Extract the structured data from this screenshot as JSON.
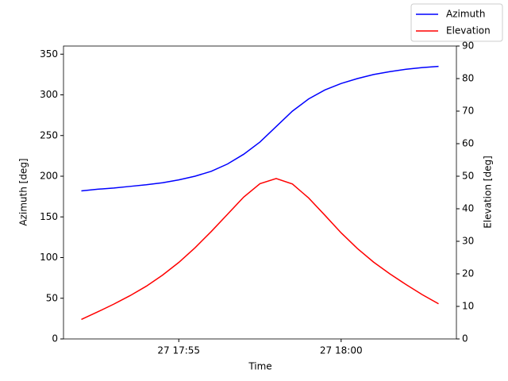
{
  "chart_data": {
    "type": "line",
    "xlabel": "Time",
    "ylabel": "Azimuth [deg]",
    "y2label": "Elevation [deg]",
    "x": [
      "27 17:52:00",
      "27 17:52:30",
      "27 17:53:00",
      "27 17:53:30",
      "27 17:54:00",
      "27 17:54:30",
      "27 17:55:00",
      "27 17:55:30",
      "27 17:56:00",
      "27 17:56:30",
      "27 17:57:00",
      "27 17:57:30",
      "27 17:58:00",
      "27 17:58:30",
      "27 17:59:00",
      "27 17:59:30",
      "27 18:00:00",
      "27 18:00:30",
      "27 18:01:00",
      "27 18:01:30",
      "27 18:02:00",
      "27 18:02:30",
      "27 18:03:00"
    ],
    "series": [
      {
        "name": "Azimuth",
        "color": "#0000ff",
        "axis": "y",
        "values": [
          182,
          184,
          185.5,
          187.5,
          189.5,
          192,
          195.5,
          200,
          206,
          215,
          227,
          242,
          261,
          280,
          295,
          306,
          314,
          320,
          325,
          328.5,
          331.5,
          333.5,
          335
        ]
      },
      {
        "name": "Elevation",
        "color": "#ff0000",
        "axis": "y2",
        "values": [
          6,
          8.3,
          10.7,
          13.3,
          16.2,
          19.6,
          23.5,
          28,
          33,
          38.3,
          43.6,
          47.7,
          49.3,
          47.6,
          43.3,
          38,
          32.6,
          27.8,
          23.6,
          20,
          16.7,
          13.6,
          10.8
        ]
      }
    ],
    "xlim": [
      "27 17:51:27",
      "27 18:03:33"
    ],
    "xticks": [
      {
        "value": "27 17:55:00",
        "label": "27 17:55"
      },
      {
        "value": "27 18:00:00",
        "label": "27 18:00"
      }
    ],
    "ylim": [
      0,
      360
    ],
    "yticks": [
      0,
      50,
      100,
      150,
      200,
      250,
      300,
      350
    ],
    "y2lim": [
      0,
      90
    ],
    "y2ticks": [
      0,
      10,
      20,
      30,
      40,
      50,
      60,
      70,
      80,
      90
    ],
    "legend": "upper right"
  }
}
